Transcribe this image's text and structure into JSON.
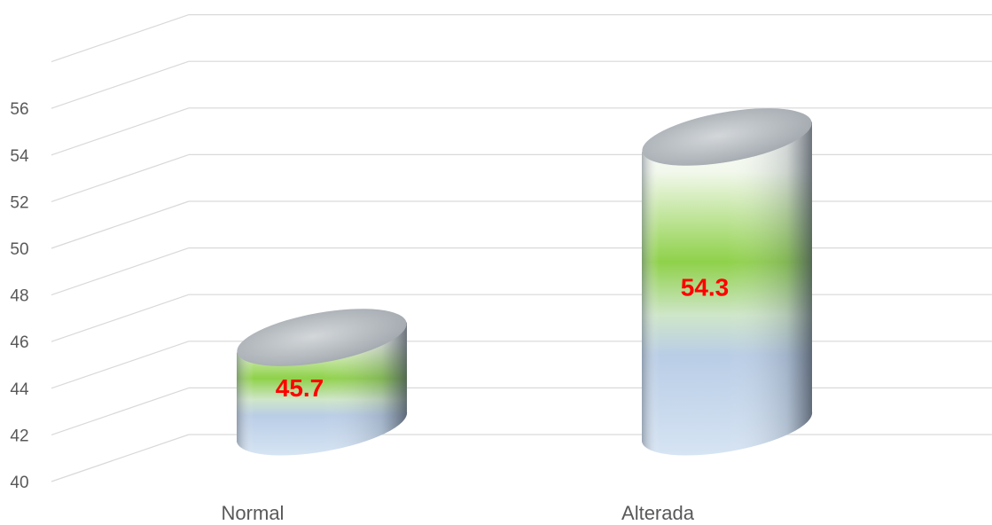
{
  "chart_data": {
    "type": "bar",
    "style": "3d-cylinder",
    "categories": [
      "Normal",
      "Alterada"
    ],
    "values": [
      45.7,
      54.3
    ],
    "data_labels": [
      "45.7",
      "54.3"
    ],
    "ylim": [
      40,
      56
    ],
    "yticks": [
      40,
      42,
      44,
      46,
      48,
      50,
      52,
      54,
      56
    ],
    "ytick_labels": [
      "40",
      "42",
      "44",
      "46",
      "48",
      "50",
      "52",
      "54",
      "56"
    ],
    "grid": true,
    "legend": "none",
    "title": "",
    "xlabel": "",
    "ylabel": "",
    "colors": {
      "cylinder_top": "#c2c7cb",
      "cylinder_green": "#8fd14a",
      "cylinder_blue": "#b9cde6",
      "data_label": "#ff0000",
      "gridline": "#d9d9d9",
      "axis_text": "#595959"
    }
  }
}
